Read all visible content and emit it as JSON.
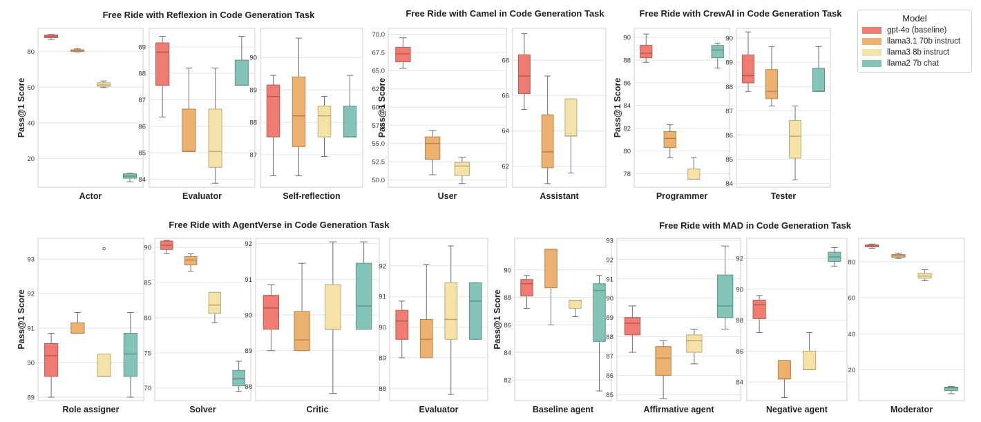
{
  "legend": {
    "title": "Model",
    "items": [
      {
        "label": "gpt-4o (baseline)",
        "color": "#F07B72"
      },
      {
        "label": "llama3.1 70b instruct",
        "color": "#ECB06F"
      },
      {
        "label": "llama3 8b instruct",
        "color": "#F5E2A6"
      },
      {
        "label": "llama2 7b chat",
        "color": "#83C4B6"
      }
    ]
  },
  "y_axis_label": "Pass@1 Score",
  "chart_data": [
    {
      "type": "boxplot",
      "title": "Free Ride with Reflexion in Code Generation Task",
      "panels": [
        {
          "xlabel": "Actor",
          "ylim": [
            4,
            93
          ],
          "ticks": [
            20,
            40,
            60,
            80
          ],
          "tick_labels": [
            "20",
            "40",
            "60",
            "80"
          ],
          "boxes": [
            {
              "q1": 87.8,
              "median": 88.6,
              "q3": 89.2,
              "whislo": 86.8,
              "whishi": 89.6,
              "fliers": []
            },
            {
              "q1": 80.0,
              "median": 80.6,
              "q3": 81.0,
              "whislo": 79.8,
              "whishi": 81.5,
              "fliers": []
            },
            {
              "q1": 60.5,
              "median": 61.3,
              "q3": 62.5,
              "whislo": 59.8,
              "whishi": 63.5,
              "fliers": []
            },
            {
              "q1": 9.0,
              "median": 10.2,
              "q3": 11.5,
              "whislo": 7.0,
              "whishi": 11.8,
              "fliers": []
            }
          ]
        },
        {
          "xlabel": "Evaluator",
          "ylim": [
            83.7,
            89.7
          ],
          "ticks": [
            84,
            85,
            86,
            87,
            88,
            89
          ],
          "tick_labels": [
            "84",
            "85",
            "86",
            "87",
            "88",
            "89"
          ],
          "boxes": [
            {
              "q1": 87.55,
              "median": 88.8,
              "q3": 89.15,
              "whislo": 86.35,
              "whishi": 89.4,
              "fliers": []
            },
            {
              "q1": 85.05,
              "median": 85.05,
              "q3": 86.65,
              "whislo": 85.05,
              "whishi": 88.2,
              "fliers": []
            },
            {
              "q1": 84.45,
              "median": 85.05,
              "q3": 86.65,
              "whislo": 83.85,
              "whishi": 88.2,
              "fliers": []
            },
            {
              "q1": 87.55,
              "median": 87.55,
              "q3": 88.5,
              "whislo": 87.55,
              "whishi": 89.4,
              "fliers": []
            }
          ]
        },
        {
          "xlabel": "Self-reflection",
          "ylim": [
            86.0,
            90.9
          ],
          "ticks": [
            87,
            88,
            89,
            90
          ],
          "tick_labels": [
            "87",
            "88",
            "89",
            "90"
          ],
          "boxes": [
            {
              "q1": 87.55,
              "median": 88.8,
              "q3": 89.15,
              "whislo": 86.35,
              "whishi": 89.45,
              "fliers": []
            },
            {
              "q1": 87.25,
              "median": 88.2,
              "q3": 89.4,
              "whislo": 86.35,
              "whishi": 90.6,
              "fliers": []
            },
            {
              "q1": 87.55,
              "median": 88.2,
              "q3": 88.5,
              "whislo": 86.95,
              "whishi": 88.8,
              "fliers": []
            },
            {
              "q1": 87.55,
              "median": 87.55,
              "q3": 88.5,
              "whislo": 87.55,
              "whishi": 89.45,
              "fliers": []
            }
          ]
        }
      ]
    },
    {
      "type": "boxplot",
      "title": "Free Ride with Camel in Code Generation Task",
      "panels": [
        {
          "xlabel": "User",
          "ylim": [
            49.0,
            70.8
          ],
          "ticks": [
            50.0,
            52.5,
            55.0,
            57.5,
            60.0,
            62.5,
            65.0,
            67.5,
            70.0
          ],
          "tick_labels": [
            "50.0",
            "52.5",
            "55.0",
            "57.5",
            "60.0",
            "62.5",
            "65.0",
            "67.5",
            "70.0"
          ],
          "boxes": [
            {
              "q1": 66.2,
              "median": 67.3,
              "q3": 68.2,
              "whislo": 65.3,
              "whishi": 69.5,
              "fliers": []
            },
            {
              "q1": 52.8,
              "median": 55.0,
              "q3": 55.9,
              "whislo": 50.7,
              "whishi": 56.8,
              "fliers": []
            },
            {
              "q1": 50.6,
              "median": 51.9,
              "q3": 52.4,
              "whislo": 49.5,
              "whishi": 53.1,
              "fliers": []
            }
          ]
        },
        {
          "xlabel": "Assistant",
          "ylim": [
            60.8,
            69.8
          ],
          "ticks": [
            62,
            64,
            66,
            68
          ],
          "tick_labels": [
            "62",
            "64",
            "66",
            "68"
          ],
          "boxes": [
            {
              "q1": 66.1,
              "median": 67.1,
              "q3": 68.3,
              "whislo": 65.2,
              "whishi": 69.5,
              "fliers": []
            },
            {
              "q1": 61.9,
              "median": 62.8,
              "q3": 64.9,
              "whislo": 61.0,
              "whishi": 67.1,
              "fliers": []
            },
            {
              "q1": 63.7,
              "median": 63.7,
              "q3": 65.8,
              "whislo": 61.6,
              "whishi": 65.8,
              "fliers": []
            }
          ]
        }
      ]
    },
    {
      "type": "boxplot",
      "title": "Free Ride with CrewAI in Code Generation Task",
      "panels": [
        {
          "xlabel": "Programmer",
          "ylim": [
            76.8,
            90.8
          ],
          "ticks": [
            78,
            80,
            82,
            84,
            86,
            88,
            90
          ],
          "tick_labels": [
            "78",
            "80",
            "82",
            "84",
            "86",
            "88",
            "90"
          ],
          "boxes": [
            {
              "q1": 88.2,
              "median": 88.6,
              "q3": 89.3,
              "whislo": 87.8,
              "whishi": 90.3,
              "fliers": []
            },
            {
              "q1": 80.3,
              "median": 81.1,
              "q3": 81.7,
              "whislo": 79.4,
              "whishi": 82.3,
              "fliers": []
            },
            {
              "q1": 77.5,
              "median": 77.5,
              "q3": 78.4,
              "whislo": 77.5,
              "whishi": 79.4,
              "fliers": []
            },
            {
              "q1": 88.2,
              "median": 88.9,
              "q3": 89.3,
              "whislo": 87.3,
              "whishi": 89.5,
              "fliers": []
            }
          ]
        },
        {
          "xlabel": "Tester",
          "ylim": [
            83.85,
            90.4
          ],
          "ticks": [
            84,
            85,
            86,
            87,
            88,
            89,
            90
          ],
          "tick_labels": [
            "84",
            "85",
            "86",
            "87",
            "88",
            "89",
            "90"
          ],
          "boxes": [
            {
              "q1": 88.15,
              "median": 88.45,
              "q3": 89.3,
              "whislo": 87.8,
              "whishi": 90.25,
              "fliers": []
            },
            {
              "q1": 87.5,
              "median": 87.8,
              "q3": 88.7,
              "whislo": 87.2,
              "whishi": 89.65,
              "fliers": []
            },
            {
              "q1": 85.05,
              "median": 85.95,
              "q3": 86.6,
              "whislo": 84.15,
              "whishi": 87.2,
              "fliers": []
            },
            {
              "q1": 87.8,
              "median": 87.8,
              "q3": 88.75,
              "whislo": 87.8,
              "whishi": 89.65,
              "fliers": []
            }
          ]
        }
      ]
    },
    {
      "type": "boxplot",
      "title": "Free Ride with AgentVerse in Code Generation Task",
      "panels": [
        {
          "xlabel": "Role assigner",
          "ylim": [
            88.9,
            93.6
          ],
          "ticks": [
            89,
            90,
            91,
            92,
            93
          ],
          "tick_labels": [
            "89",
            "90",
            "91",
            "92",
            "93"
          ],
          "boxes": [
            {
              "q1": 89.6,
              "median": 90.2,
              "q3": 90.55,
              "whislo": 89.0,
              "whishi": 90.85,
              "fliers": []
            },
            {
              "q1": 90.85,
              "median": 90.85,
              "q3": 91.15,
              "whislo": 90.85,
              "whishi": 91.45,
              "fliers": []
            },
            {
              "q1": 89.6,
              "median": 89.6,
              "q3": 90.25,
              "whislo": 89.6,
              "whishi": 90.25,
              "fliers": [
                93.3
              ]
            },
            {
              "q1": 89.6,
              "median": 90.25,
              "q3": 90.85,
              "whislo": 89.0,
              "whishi": 91.45,
              "fliers": []
            }
          ]
        },
        {
          "xlabel": "Solver",
          "ylim": [
            68.2,
            91.3
          ],
          "ticks": [
            70,
            75,
            80,
            85,
            90
          ],
          "tick_labels": [
            "70",
            "75",
            "80",
            "85",
            "90"
          ],
          "boxes": [
            {
              "q1": 89.7,
              "median": 90.3,
              "q3": 90.9,
              "whislo": 89.1,
              "whishi": 91.0,
              "fliers": []
            },
            {
              "q1": 87.5,
              "median": 88.2,
              "q3": 88.7,
              "whislo": 86.6,
              "whishi": 89.1,
              "fliers": []
            },
            {
              "q1": 80.6,
              "median": 81.8,
              "q3": 83.6,
              "whislo": 79.3,
              "whishi": 83.6,
              "fliers": []
            },
            {
              "q1": 70.3,
              "median": 71.3,
              "q3": 72.5,
              "whislo": 69.5,
              "whishi": 73.8,
              "fliers": []
            }
          ]
        },
        {
          "xlabel": "Critic",
          "ylim": [
            87.6,
            92.15
          ],
          "ticks": [
            88,
            89,
            90,
            91,
            92
          ],
          "tick_labels": [
            "88",
            "89",
            "90",
            "91",
            "92"
          ],
          "boxes": [
            {
              "q1": 89.6,
              "median": 90.2,
              "q3": 90.55,
              "whislo": 89.0,
              "whishi": 90.85,
              "fliers": []
            },
            {
              "q1": 89.0,
              "median": 89.3,
              "q3": 90.1,
              "whislo": 89.0,
              "whishi": 91.45,
              "fliers": []
            },
            {
              "q1": 89.6,
              "median": 89.6,
              "q3": 90.85,
              "whislo": 87.8,
              "whishi": 92.05,
              "fliers": []
            },
            {
              "q1": 89.6,
              "median": 90.25,
              "q3": 91.45,
              "whislo": 89.6,
              "whishi": 92.05,
              "fliers": []
            }
          ]
        },
        {
          "xlabel": "Evaluator",
          "ylim": [
            87.6,
            92.9
          ],
          "ticks": [
            88,
            89,
            90,
            91,
            92
          ],
          "tick_labels": [
            "88",
            "89",
            "90",
            "91",
            "92"
          ],
          "boxes": [
            {
              "q1": 89.6,
              "median": 90.2,
              "q3": 90.55,
              "whislo": 89.0,
              "whishi": 90.85,
              "fliers": []
            },
            {
              "q1": 89.0,
              "median": 89.6,
              "q3": 90.25,
              "whislo": 89.0,
              "whishi": 92.05,
              "fliers": []
            },
            {
              "q1": 89.6,
              "median": 90.25,
              "q3": 91.45,
              "whislo": 87.8,
              "whishi": 92.65,
              "fliers": []
            },
            {
              "q1": 89.6,
              "median": 90.85,
              "q3": 91.45,
              "whislo": 89.6,
              "whishi": 91.45,
              "fliers": []
            }
          ]
        }
      ]
    },
    {
      "type": "boxplot",
      "title": "Free Ride with MAD in Code Generation Task",
      "panels": [
        {
          "xlabel": "Baseline agent",
          "ylim": [
            80.5,
            92.3
          ],
          "ticks": [
            82,
            84,
            86,
            88,
            90
          ],
          "tick_labels": [
            "82",
            "84",
            "86",
            "88",
            "90"
          ],
          "boxes": [
            {
              "q1": 88.1,
              "median": 89.0,
              "q3": 89.3,
              "whislo": 87.2,
              "whishi": 89.6,
              "fliers": []
            },
            {
              "q1": 88.7,
              "median": 91.5,
              "q3": 91.5,
              "whislo": 86.0,
              "whishi": 91.5,
              "fliers": []
            },
            {
              "q1": 87.2,
              "median": 87.8,
              "q3": 87.8,
              "whislo": 86.6,
              "whishi": 87.8,
              "fliers": []
            },
            {
              "q1": 84.8,
              "median": 88.5,
              "q3": 89.0,
              "whislo": 81.2,
              "whishi": 89.6,
              "fliers": []
            }
          ]
        },
        {
          "xlabel": "Affirmative agent",
          "ylim": [
            84.7,
            93.1
          ],
          "ticks": [
            85,
            86,
            87,
            88,
            89,
            90,
            91,
            92,
            93
          ],
          "tick_labels": [
            "85",
            "86",
            "87",
            "88",
            "89",
            "90",
            "91",
            "92",
            "93"
          ],
          "boxes": [
            {
              "q1": 88.1,
              "median": 88.7,
              "q3": 89.0,
              "whislo": 87.2,
              "whishi": 89.6,
              "fliers": []
            },
            {
              "q1": 86.0,
              "median": 86.9,
              "q3": 87.5,
              "whislo": 84.8,
              "whishi": 87.8,
              "fliers": []
            },
            {
              "q1": 87.2,
              "median": 87.8,
              "q3": 88.1,
              "whislo": 86.6,
              "whishi": 88.4,
              "fliers": []
            },
            {
              "q1": 89.0,
              "median": 89.6,
              "q3": 91.2,
              "whislo": 88.4,
              "whishi": 92.7,
              "fliers": []
            }
          ]
        },
        {
          "xlabel": "Negative agent",
          "ylim": [
            82.8,
            93.3
          ],
          "ticks": [
            84,
            86,
            88,
            90,
            92
          ],
          "tick_labels": [
            "84",
            "86",
            "88",
            "90",
            "92"
          ],
          "boxes": [
            {
              "q1": 88.1,
              "median": 89.0,
              "q3": 89.3,
              "whislo": 87.2,
              "whishi": 89.6,
              "fliers": []
            },
            {
              "q1": 84.2,
              "median": 84.2,
              "q3": 85.4,
              "whislo": 83.0,
              "whishi": 85.4,
              "fliers": []
            },
            {
              "q1": 84.8,
              "median": 84.8,
              "q3": 86.0,
              "whislo": 84.8,
              "whishi": 87.2,
              "fliers": []
            },
            {
              "q1": 91.8,
              "median": 92.1,
              "q3": 92.4,
              "whislo": 91.5,
              "whishi": 92.7,
              "fliers": []
            }
          ]
        },
        {
          "xlabel": "Moderator",
          "ylim": [
            3,
            93
          ],
          "ticks": [
            20,
            40,
            60,
            80
          ],
          "tick_labels": [
            "20",
            "40",
            "60",
            "80"
          ],
          "boxes": [
            {
              "q1": 88.3,
              "median": 88.8,
              "q3": 89.3,
              "whislo": 87.5,
              "whishi": 89.8,
              "fliers": []
            },
            {
              "q1": 82.5,
              "median": 83.3,
              "q3": 84.0,
              "whislo": 81.8,
              "whishi": 84.8,
              "fliers": []
            },
            {
              "q1": 70.8,
              "median": 72.0,
              "q3": 73.6,
              "whislo": 69.5,
              "whishi": 75.6,
              "fliers": []
            },
            {
              "q1": 8.5,
              "median": 10.0,
              "q3": 10.5,
              "whislo": 6.8,
              "whishi": 10.9,
              "fliers": []
            }
          ]
        }
      ]
    }
  ]
}
